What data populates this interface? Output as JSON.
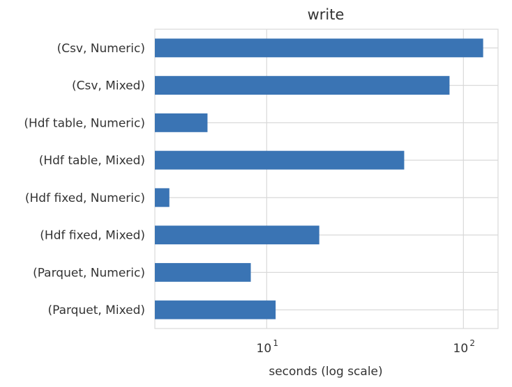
{
  "chart_data": {
    "type": "bar",
    "orientation": "horizontal",
    "title": "write",
    "xlabel": "seconds (log scale)",
    "ylabel": "",
    "x_scale": "log",
    "xlim": [
      2.7,
      150
    ],
    "x_ticks": [
      {
        "value": 10,
        "base": "10",
        "exp": "1"
      },
      {
        "value": 100,
        "base": "10",
        "exp": "2"
      }
    ],
    "grid": true,
    "categories": [
      "(Csv, Numeric)",
      "(Csv, Mixed)",
      "(Hdf table, Numeric)",
      "(Hdf table, Mixed)",
      "(Hdf fixed, Numeric)",
      "(Hdf fixed, Mixed)",
      "(Parquet, Numeric)",
      "(Parquet, Mixed)"
    ],
    "values": [
      126,
      85,
      5.0,
      50,
      3.2,
      18.5,
      8.3,
      11.1
    ],
    "bar_color": "#3a74b4"
  }
}
